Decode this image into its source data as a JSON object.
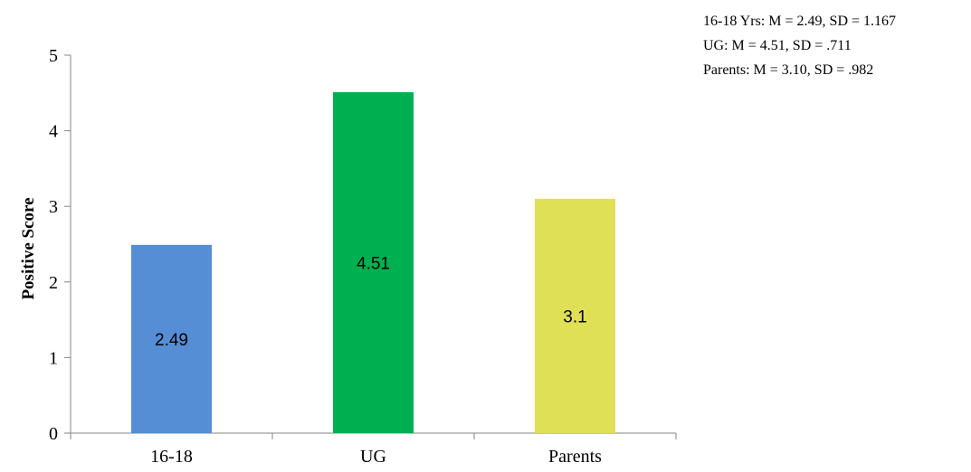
{
  "chart_data": {
    "type": "bar",
    "categories": [
      "16-18",
      "UG",
      "Parents"
    ],
    "values": [
      2.49,
      4.51,
      3.1
    ],
    "data_labels": [
      "2.49",
      "4.51",
      "3.1"
    ],
    "colors": [
      "#558ed5",
      "#00b050",
      "#e0e057"
    ],
    "ylabel": "Positive Score",
    "xlabel": "",
    "ylim": [
      0,
      5
    ],
    "yticks": [
      "0",
      "1",
      "2",
      "3",
      "4",
      "5"
    ],
    "grid": false,
    "legend": "none"
  },
  "stats": [
    "16-18 Yrs: M = 2.49, SD = 1.167",
    "UG: M = 4.51, SD = .711",
    "Parents: M = 3.10, SD = .982"
  ]
}
